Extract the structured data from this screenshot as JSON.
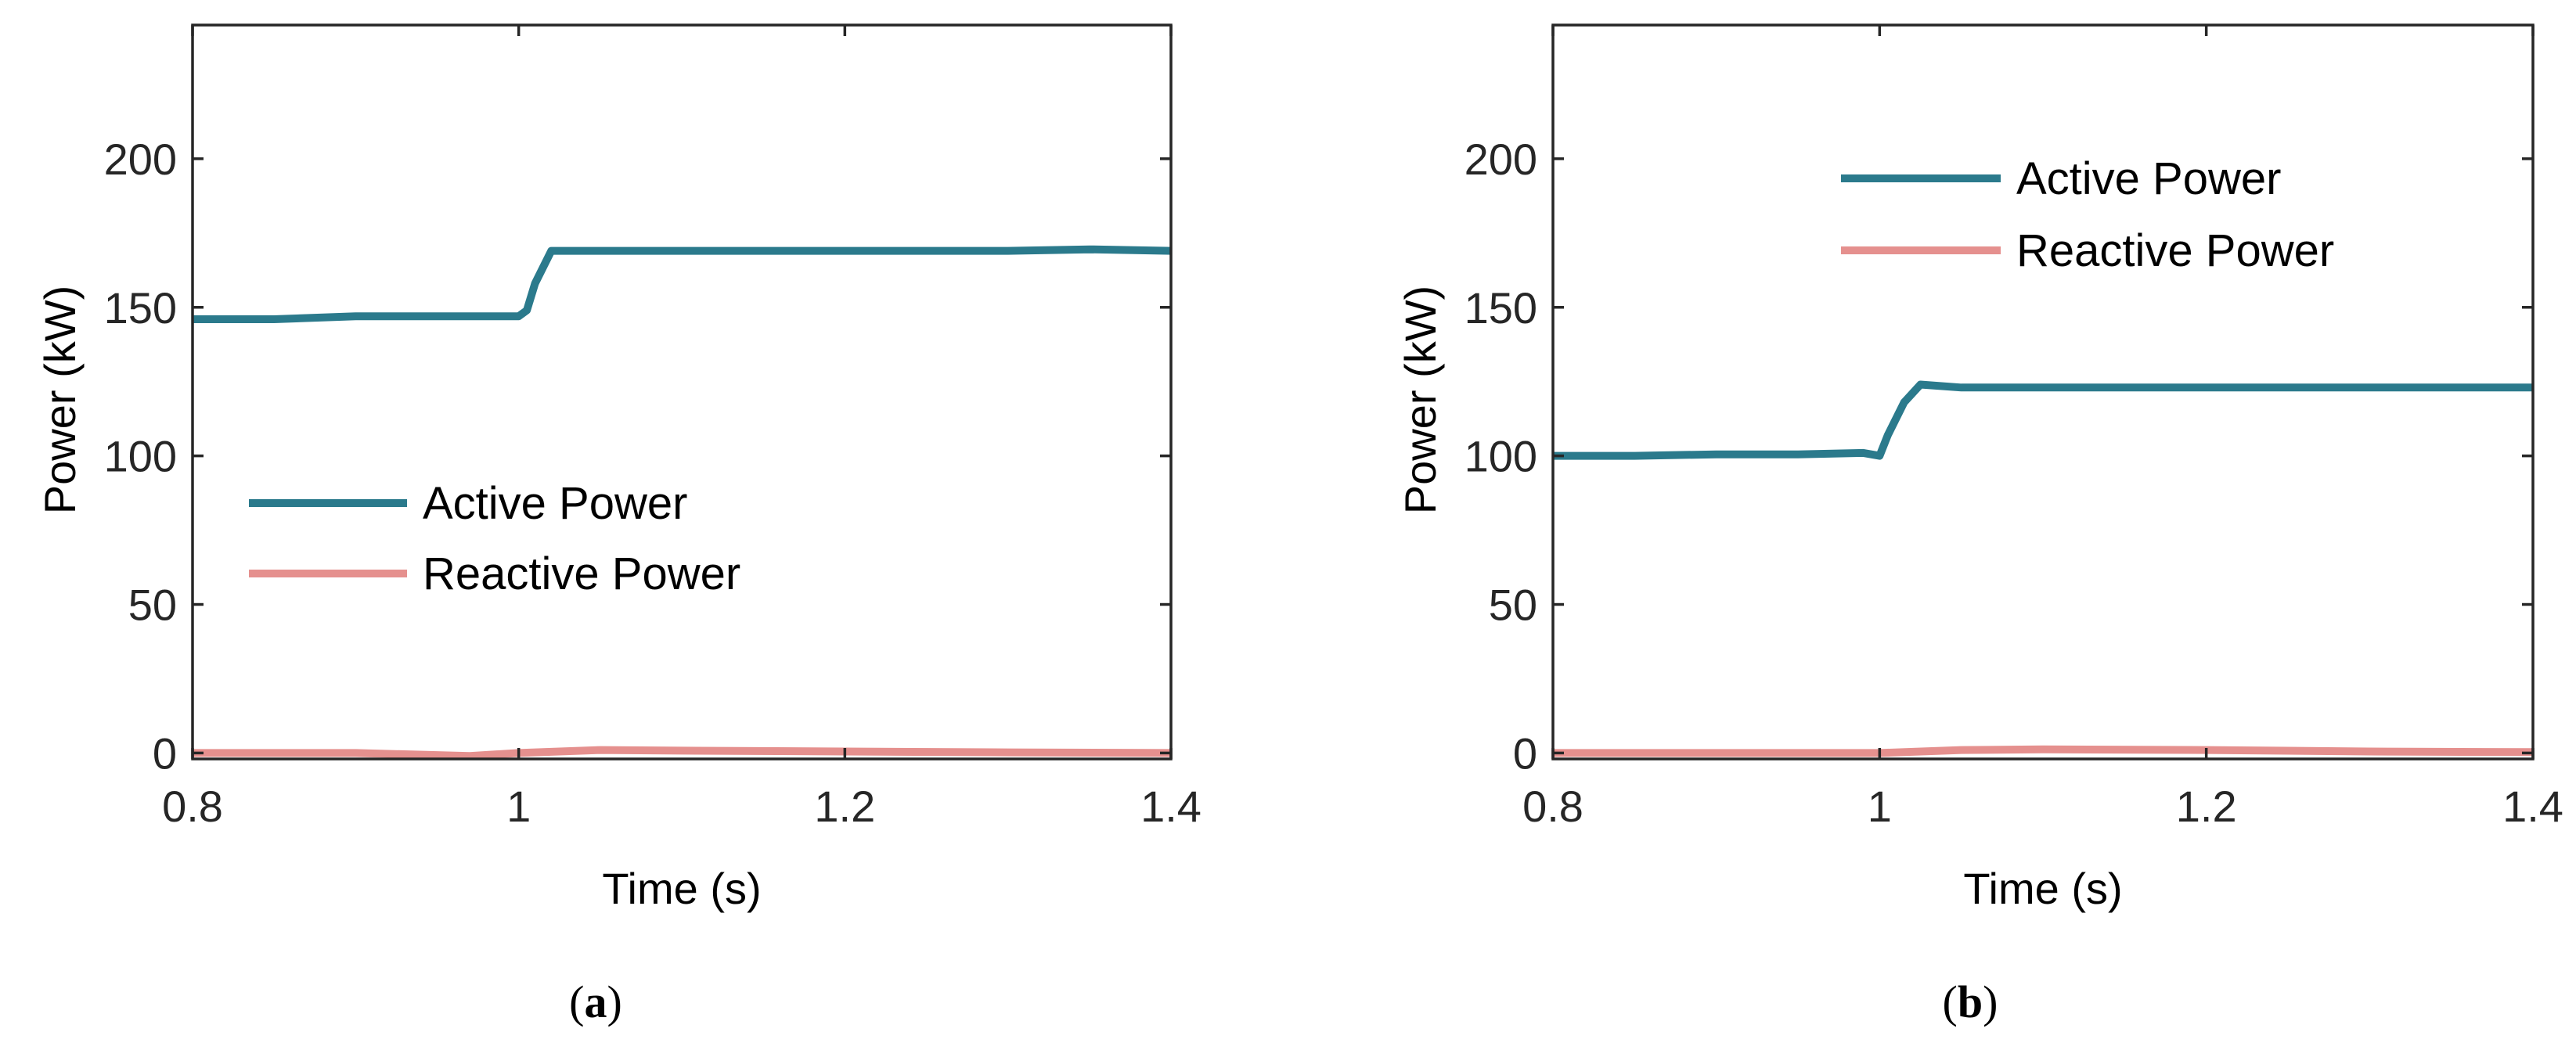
{
  "chart_data": [
    {
      "type": "line",
      "caption": {
        "open": "(",
        "letter": "a",
        "close": ")"
      },
      "xlabel": "Time (s)",
      "ylabel": "Power (kW)",
      "xlim": [
        0.8,
        1.4
      ],
      "ylim": [
        -2,
        245
      ],
      "x_ticks": [
        0.8,
        1.0,
        1.2,
        1.4
      ],
      "x_tick_labels": [
        "0.8",
        "1",
        "1.2",
        "1.4"
      ],
      "y_ticks": [
        0,
        50,
        100,
        150,
        200
      ],
      "y_tick_labels": [
        "0",
        "50",
        "100",
        "150",
        "200"
      ],
      "grid": false,
      "legend_position": "center-left",
      "series": [
        {
          "name": "Active Power",
          "color": "#2b7a8c",
          "x": [
            0.8,
            0.85,
            0.9,
            0.95,
            1.0,
            1.005,
            1.01,
            1.02,
            1.05,
            1.1,
            1.2,
            1.3,
            1.35,
            1.4
          ],
          "y": [
            146,
            146,
            147,
            147,
            147,
            149,
            158,
            169,
            169,
            169,
            169,
            169,
            169.5,
            169
          ]
        },
        {
          "name": "Reactive Power",
          "color": "#e5908e",
          "x": [
            0.8,
            0.9,
            0.97,
            1.0,
            1.05,
            1.1,
            1.2,
            1.3,
            1.4
          ],
          "y": [
            0,
            0,
            -1,
            0,
            1,
            0.8,
            0.5,
            0.2,
            0
          ]
        }
      ]
    },
    {
      "type": "line",
      "caption": {
        "open": "(",
        "letter": "b",
        "close": ")"
      },
      "xlabel": "Time (s)",
      "ylabel": "Power (kW)",
      "xlim": [
        0.8,
        1.4
      ],
      "ylim": [
        -2,
        245
      ],
      "x_ticks": [
        0.8,
        1.0,
        1.2,
        1.4
      ],
      "x_tick_labels": [
        "0.8",
        "1",
        "1.2",
        "1.4"
      ],
      "y_ticks": [
        0,
        50,
        100,
        150,
        200
      ],
      "y_tick_labels": [
        "0",
        "50",
        "100",
        "150",
        "200"
      ],
      "grid": false,
      "legend_position": "top-center",
      "series": [
        {
          "name": "Active Power",
          "color": "#2b7a8c",
          "x": [
            0.8,
            0.85,
            0.9,
            0.95,
            0.99,
            1.0,
            1.005,
            1.015,
            1.025,
            1.05,
            1.1,
            1.2,
            1.3,
            1.4
          ],
          "y": [
            100,
            100,
            100.5,
            100.5,
            101,
            100,
            107,
            118,
            124,
            123,
            123,
            123,
            123,
            123
          ]
        },
        {
          "name": "Reactive Power",
          "color": "#e5908e",
          "x": [
            0.8,
            0.9,
            1.0,
            1.05,
            1.1,
            1.2,
            1.3,
            1.4
          ],
          "y": [
            0,
            0,
            0,
            1,
            1.2,
            1,
            0.5,
            0.3
          ]
        }
      ]
    }
  ]
}
